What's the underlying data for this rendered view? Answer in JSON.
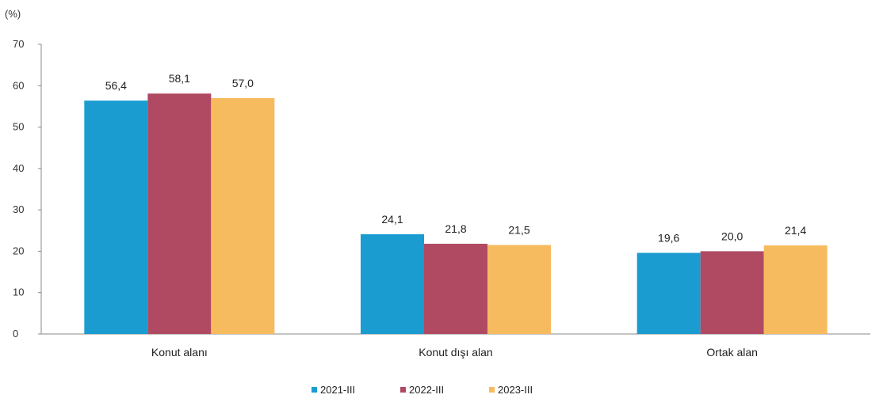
{
  "chart_data": {
    "type": "bar",
    "unit_label": "(%)",
    "categories": [
      "Konut alanı",
      "Konut dışı alan",
      "Ortak alan"
    ],
    "series": [
      {
        "name": "2021-III",
        "color": "#1a9cd0",
        "values": [
          56.4,
          24.1,
          19.6
        ],
        "labels": [
          "56,4",
          "24,1",
          "19,6"
        ]
      },
      {
        "name": "2022-III",
        "color": "#b04a63",
        "values": [
          58.1,
          21.8,
          20.0
        ],
        "labels": [
          "58,1",
          "21,8",
          "20,0"
        ]
      },
      {
        "name": "2023-III",
        "color": "#f7bb5f",
        "values": [
          57.0,
          21.5,
          21.4
        ],
        "labels": [
          "57,0",
          "21,5",
          "21,4"
        ]
      }
    ],
    "ylim": [
      0,
      70
    ],
    "yticks": [
      0,
      10,
      20,
      30,
      40,
      50,
      60,
      70
    ],
    "ytick_labels": [
      "0",
      "10",
      "20",
      "30",
      "40",
      "50",
      "60",
      "70"
    ],
    "grid": false,
    "legend_position": "bottom-center"
  }
}
